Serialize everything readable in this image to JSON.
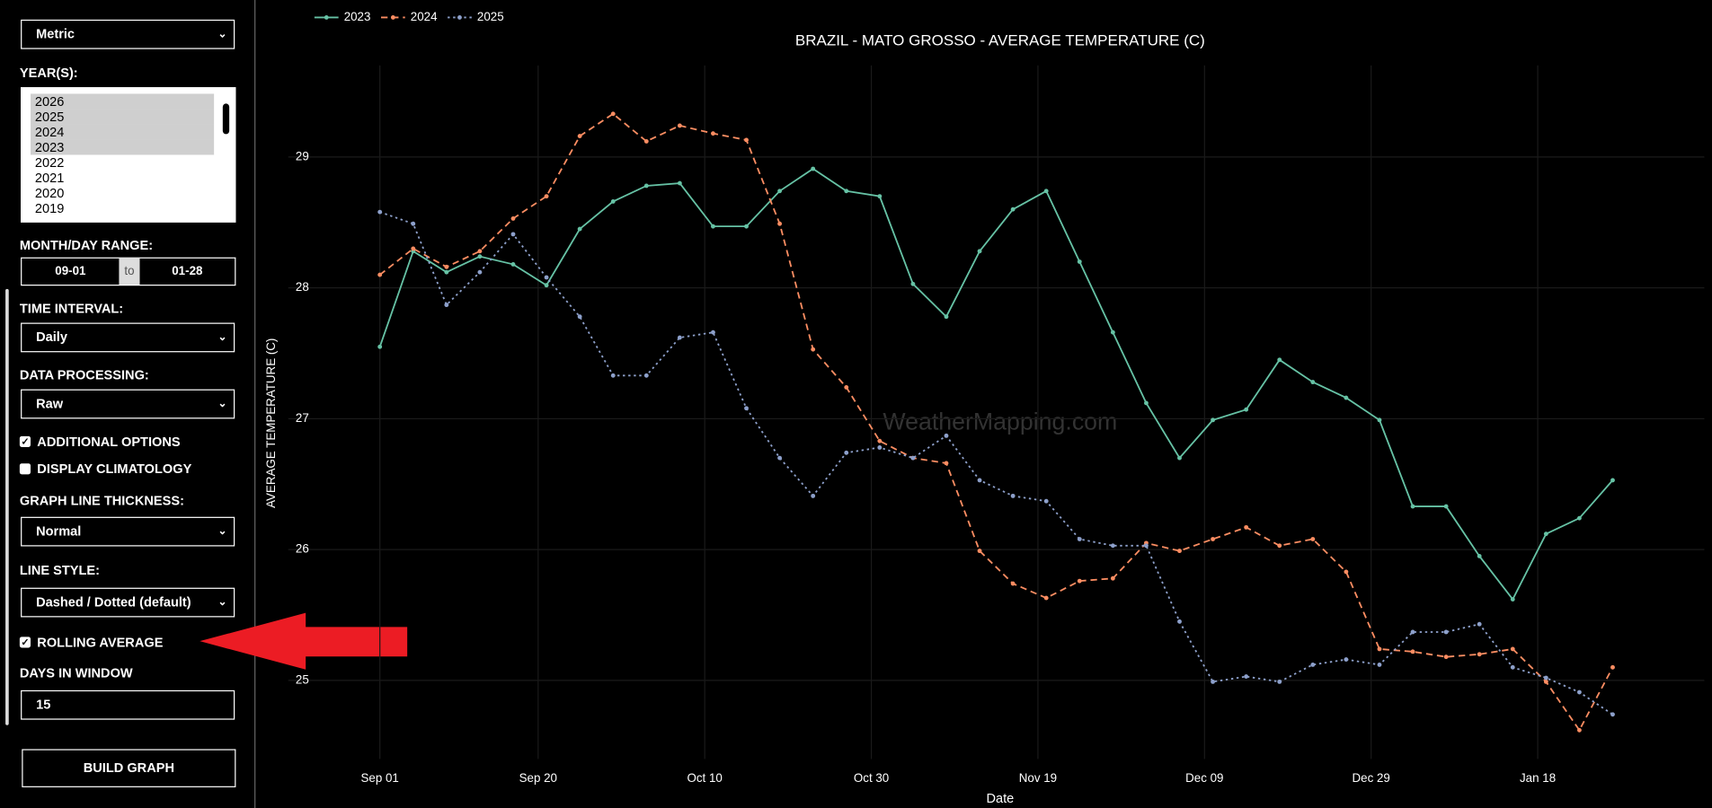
{
  "sidebar": {
    "units": "Metric",
    "years_label": "YEAR(S):",
    "years": [
      "2026",
      "2025",
      "2024",
      "2023",
      "2022",
      "2021",
      "2020",
      "2019"
    ],
    "range_label": "MONTH/DAY RANGE:",
    "range_start": "09-01",
    "range_to": "to",
    "range_end": "01-28",
    "interval_label": "TIME INTERVAL:",
    "interval": "Daily",
    "processing_label": "DATA PROCESSING:",
    "processing": "Raw",
    "additional_options": {
      "label": "ADDITIONAL OPTIONS",
      "checked": true
    },
    "display_climatology": {
      "label": "DISPLAY CLIMATOLOGY",
      "checked": false
    },
    "thickness_label": "GRAPH LINE THICKNESS:",
    "thickness": "Normal",
    "line_style_label": "LINE STYLE:",
    "line_style": "Dashed / Dotted (default)",
    "rolling_average": {
      "label": "ROLLING AVERAGE",
      "checked": true
    },
    "window_label": "DAYS IN WINDOW",
    "window": "15",
    "build": "BUILD GRAPH"
  },
  "chart_data": {
    "type": "line",
    "title": "BRAZIL - MATO GROSSO - AVERAGE TEMPERATURE (C)",
    "y_label": "AVERAGE TEMPERATURE (C)",
    "x_label": "Date",
    "watermark": "WeatherMapping.com",
    "x": [
      0,
      4,
      8,
      12,
      16,
      20,
      24,
      28,
      32,
      36,
      40,
      44,
      48,
      52,
      56,
      60,
      64,
      68,
      72,
      76,
      80,
      84,
      88,
      92,
      96,
      100,
      104,
      108,
      112,
      116,
      120,
      124,
      128,
      132,
      136,
      140,
      144,
      148
    ],
    "xlim": [
      -11,
      159
    ],
    "xticks": [
      {
        "value": 0,
        "label": "Sep 01"
      },
      {
        "value": 19,
        "label": "Sep 20"
      },
      {
        "value": 39,
        "label": "Oct 10"
      },
      {
        "value": 59,
        "label": "Oct 30"
      },
      {
        "value": 79,
        "label": "Nov 19"
      },
      {
        "value": 99,
        "label": "Dec 09"
      },
      {
        "value": 119,
        "label": "Dec 29"
      },
      {
        "value": 139,
        "label": "Jan 18"
      }
    ],
    "ylim": [
      24.4,
      29.7
    ],
    "yticks": [
      25,
      26,
      27,
      28,
      29
    ],
    "grid": true,
    "legend": "top-left",
    "series": [
      {
        "name": "2023",
        "color": "#66c2a5",
        "dash": "solid",
        "values": [
          27.55,
          28.28,
          28.12,
          28.24,
          28.18,
          28.02,
          28.45,
          28.66,
          28.78,
          28.8,
          28.47,
          28.47,
          28.74,
          28.91,
          28.74,
          28.7,
          28.03,
          27.78,
          28.28,
          28.6,
          28.74,
          28.2,
          27.66,
          27.12,
          26.7,
          26.99,
          27.07,
          27.45,
          27.28,
          27.16,
          26.99,
          26.33,
          26.33,
          25.95,
          25.62,
          26.12,
          26.24,
          26.53
        ]
      },
      {
        "name": "2024",
        "color": "#fc8d62",
        "dash": "dashed",
        "values": [
          28.1,
          28.3,
          28.16,
          28.28,
          28.53,
          28.7,
          29.16,
          29.33,
          29.12,
          29.24,
          29.18,
          29.13,
          28.49,
          27.53,
          27.24,
          26.83,
          26.7,
          26.66,
          25.99,
          25.74,
          25.63,
          25.76,
          25.78,
          26.05,
          25.99,
          26.08,
          26.17,
          26.03,
          26.08,
          25.83,
          25.24,
          25.22,
          25.18,
          25.2,
          25.24,
          24.99,
          24.62,
          25.1
        ]
      },
      {
        "name": "2025",
        "color": "#8da0cb",
        "dash": "dotted",
        "values": [
          28.58,
          28.49,
          27.87,
          28.12,
          28.41,
          28.08,
          27.78,
          27.33,
          27.33,
          27.62,
          27.66,
          27.08,
          26.7,
          26.41,
          26.74,
          26.78,
          26.7,
          26.87,
          26.53,
          26.41,
          26.37,
          26.08,
          26.03,
          26.03,
          25.45,
          24.99,
          25.03,
          24.99,
          25.12,
          25.16,
          25.12,
          25.37,
          25.37,
          25.43,
          25.1,
          25.02,
          24.91,
          24.74
        ]
      }
    ]
  }
}
